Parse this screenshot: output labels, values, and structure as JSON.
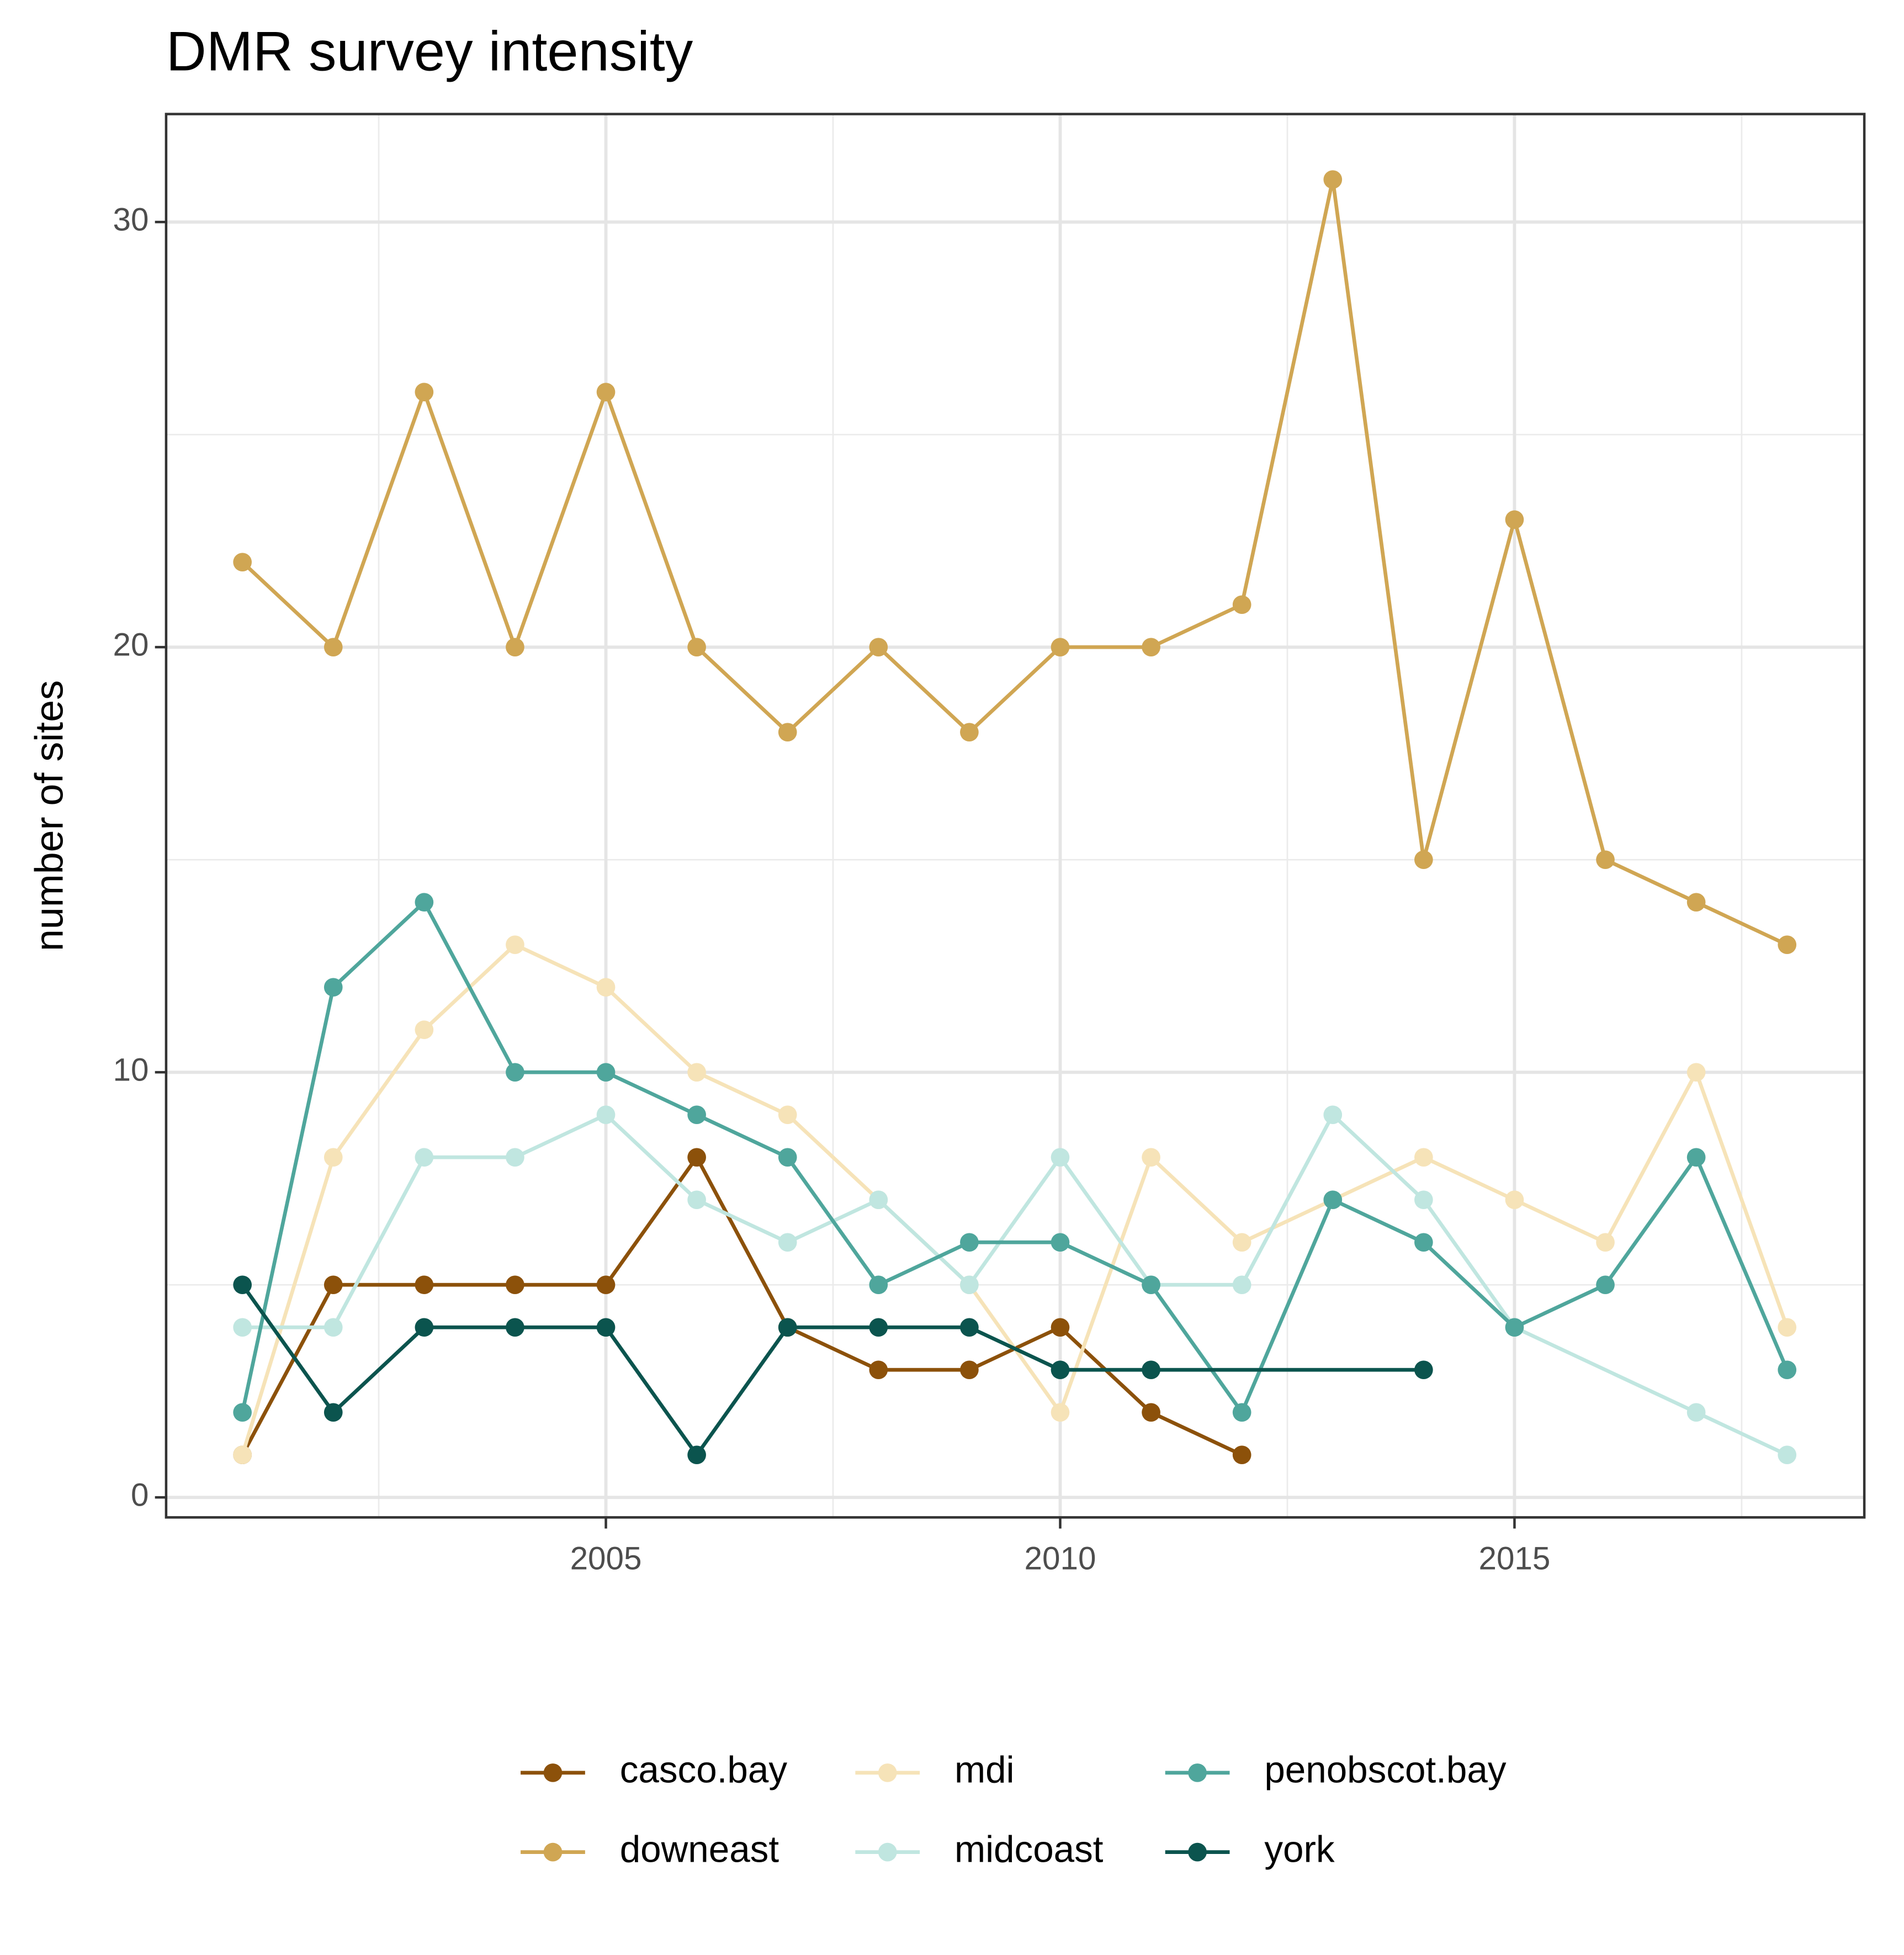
{
  "chart_data": {
    "type": "line",
    "title": "DMR survey intensity",
    "y_label": "number of sites",
    "xlim": [
      2000.16,
      2018.85
    ],
    "xticks": [
      2005,
      2010,
      2015
    ],
    "xminor": [
      2002.5,
      2007.5,
      2012.5,
      2017.5
    ],
    "ylim": [
      -0.47,
      32.54
    ],
    "yticks": [
      0,
      10,
      20,
      30
    ],
    "yminor": [
      5,
      15,
      25
    ],
    "grid": true,
    "legend": "bottom",
    "series": [
      {
        "name": "casco.bay",
        "color": "#8c510a",
        "x": [
          2001,
          2002,
          2003,
          2004,
          2005,
          2006,
          2007,
          2008,
          2009,
          2010,
          2011,
          2012
        ],
        "values": [
          1,
          5,
          5,
          5,
          5,
          8,
          4,
          3,
          3,
          4,
          2,
          1
        ]
      },
      {
        "name": "downeast",
        "color": "#d0a653",
        "x": [
          2001,
          2002,
          2003,
          2004,
          2005,
          2006,
          2007,
          2008,
          2009,
          2010,
          2011,
          2012,
          2013,
          2014,
          2015,
          2016,
          2017,
          2018
        ],
        "values": [
          22,
          20,
          26,
          20,
          26,
          20,
          18,
          20,
          18,
          20,
          20,
          21,
          31,
          15,
          23,
          15,
          14,
          13
        ]
      },
      {
        "name": "mdi",
        "color": "#f6e3b8",
        "x": [
          2001,
          2002,
          2003,
          2004,
          2005,
          2006,
          2007,
          2008,
          2009,
          2010,
          2011,
          2012,
          2013,
          2014,
          2015,
          2016,
          2017,
          2018
        ],
        "values": [
          1,
          8,
          11,
          13,
          12,
          10,
          9,
          7,
          5,
          2,
          8,
          6,
          7,
          8,
          7,
          6,
          10,
          4
        ]
      },
      {
        "name": "midcoast",
        "color": "#c0e6e0",
        "x": [
          2001,
          2002,
          2003,
          2004,
          2005,
          2006,
          2007,
          2008,
          2009,
          2010,
          2011,
          2012,
          2013,
          2014,
          2015,
          2017,
          2018
        ],
        "values": [
          4,
          4,
          8,
          8,
          9,
          7,
          6,
          7,
          5,
          8,
          5,
          5,
          9,
          7,
          4,
          2,
          1
        ]
      },
      {
        "name": "penobscot.bay",
        "color": "#4fa69c",
        "x": [
          2001,
          2002,
          2003,
          2004,
          2005,
          2006,
          2007,
          2008,
          2009,
          2010,
          2011,
          2012,
          2013,
          2014,
          2015,
          2016,
          2017,
          2018
        ],
        "values": [
          2,
          12,
          14,
          10,
          10,
          9,
          8,
          5,
          6,
          6,
          5,
          2,
          7,
          6,
          4,
          5,
          8,
          3
        ]
      },
      {
        "name": "york",
        "color": "#0b544e",
        "x": [
          2001,
          2002,
          2003,
          2004,
          2005,
          2006,
          2007,
          2008,
          2009,
          2010,
          2011,
          2014
        ],
        "values": [
          5,
          2,
          4,
          4,
          4,
          1,
          4,
          4,
          4,
          3,
          3,
          3
        ]
      }
    ]
  }
}
